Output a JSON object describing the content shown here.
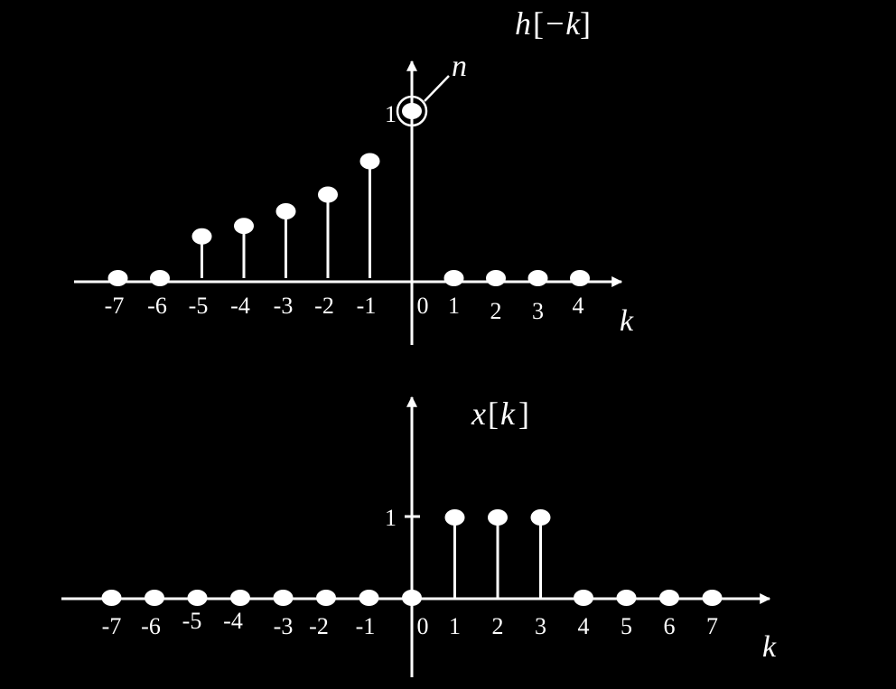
{
  "colors": {
    "background": "#000000",
    "foreground": "#ffffff"
  },
  "chart_data": [
    {
      "type": "stem",
      "title_func": "h",
      "title_arg": "−k",
      "xlabel": "k",
      "ylabel": "",
      "annotation": "n",
      "ytick_label": "1",
      "x": [
        -7,
        -6,
        -5,
        -4,
        -3,
        -2,
        -1,
        0,
        1,
        2,
        3,
        4
      ],
      "values": [
        0,
        0,
        0.25,
        0.3125,
        0.4,
        0.5,
        0.7,
        1,
        0,
        0,
        0,
        0
      ],
      "x_tick_labels": [
        "-7",
        "-6",
        "-5",
        "-4",
        "-3",
        "-2",
        "-1",
        "0",
        "1",
        "2",
        "3",
        "4"
      ],
      "xlim": [
        -7.8,
        5.0
      ],
      "ylim": [
        0,
        1.3
      ]
    },
    {
      "type": "stem",
      "title_func": "x",
      "title_arg": "k",
      "xlabel": "k",
      "ylabel": "",
      "ytick_label": "1",
      "x": [
        -7,
        -6,
        -5,
        -4,
        -3,
        -2,
        -1,
        0,
        1,
        2,
        3,
        4,
        5,
        6,
        7
      ],
      "values": [
        0,
        0,
        0,
        0,
        0,
        0,
        0,
        0,
        1,
        1,
        1,
        0,
        0,
        0,
        0
      ],
      "x_tick_labels": [
        "-7",
        "-6",
        "-5",
        "-4",
        "-3",
        "-2",
        "-1",
        "0",
        "1",
        "2",
        "3",
        "4",
        "5",
        "6",
        "7"
      ],
      "xlim": [
        -8.2,
        8.5
      ],
      "ylim": [
        0,
        1.3
      ]
    }
  ]
}
